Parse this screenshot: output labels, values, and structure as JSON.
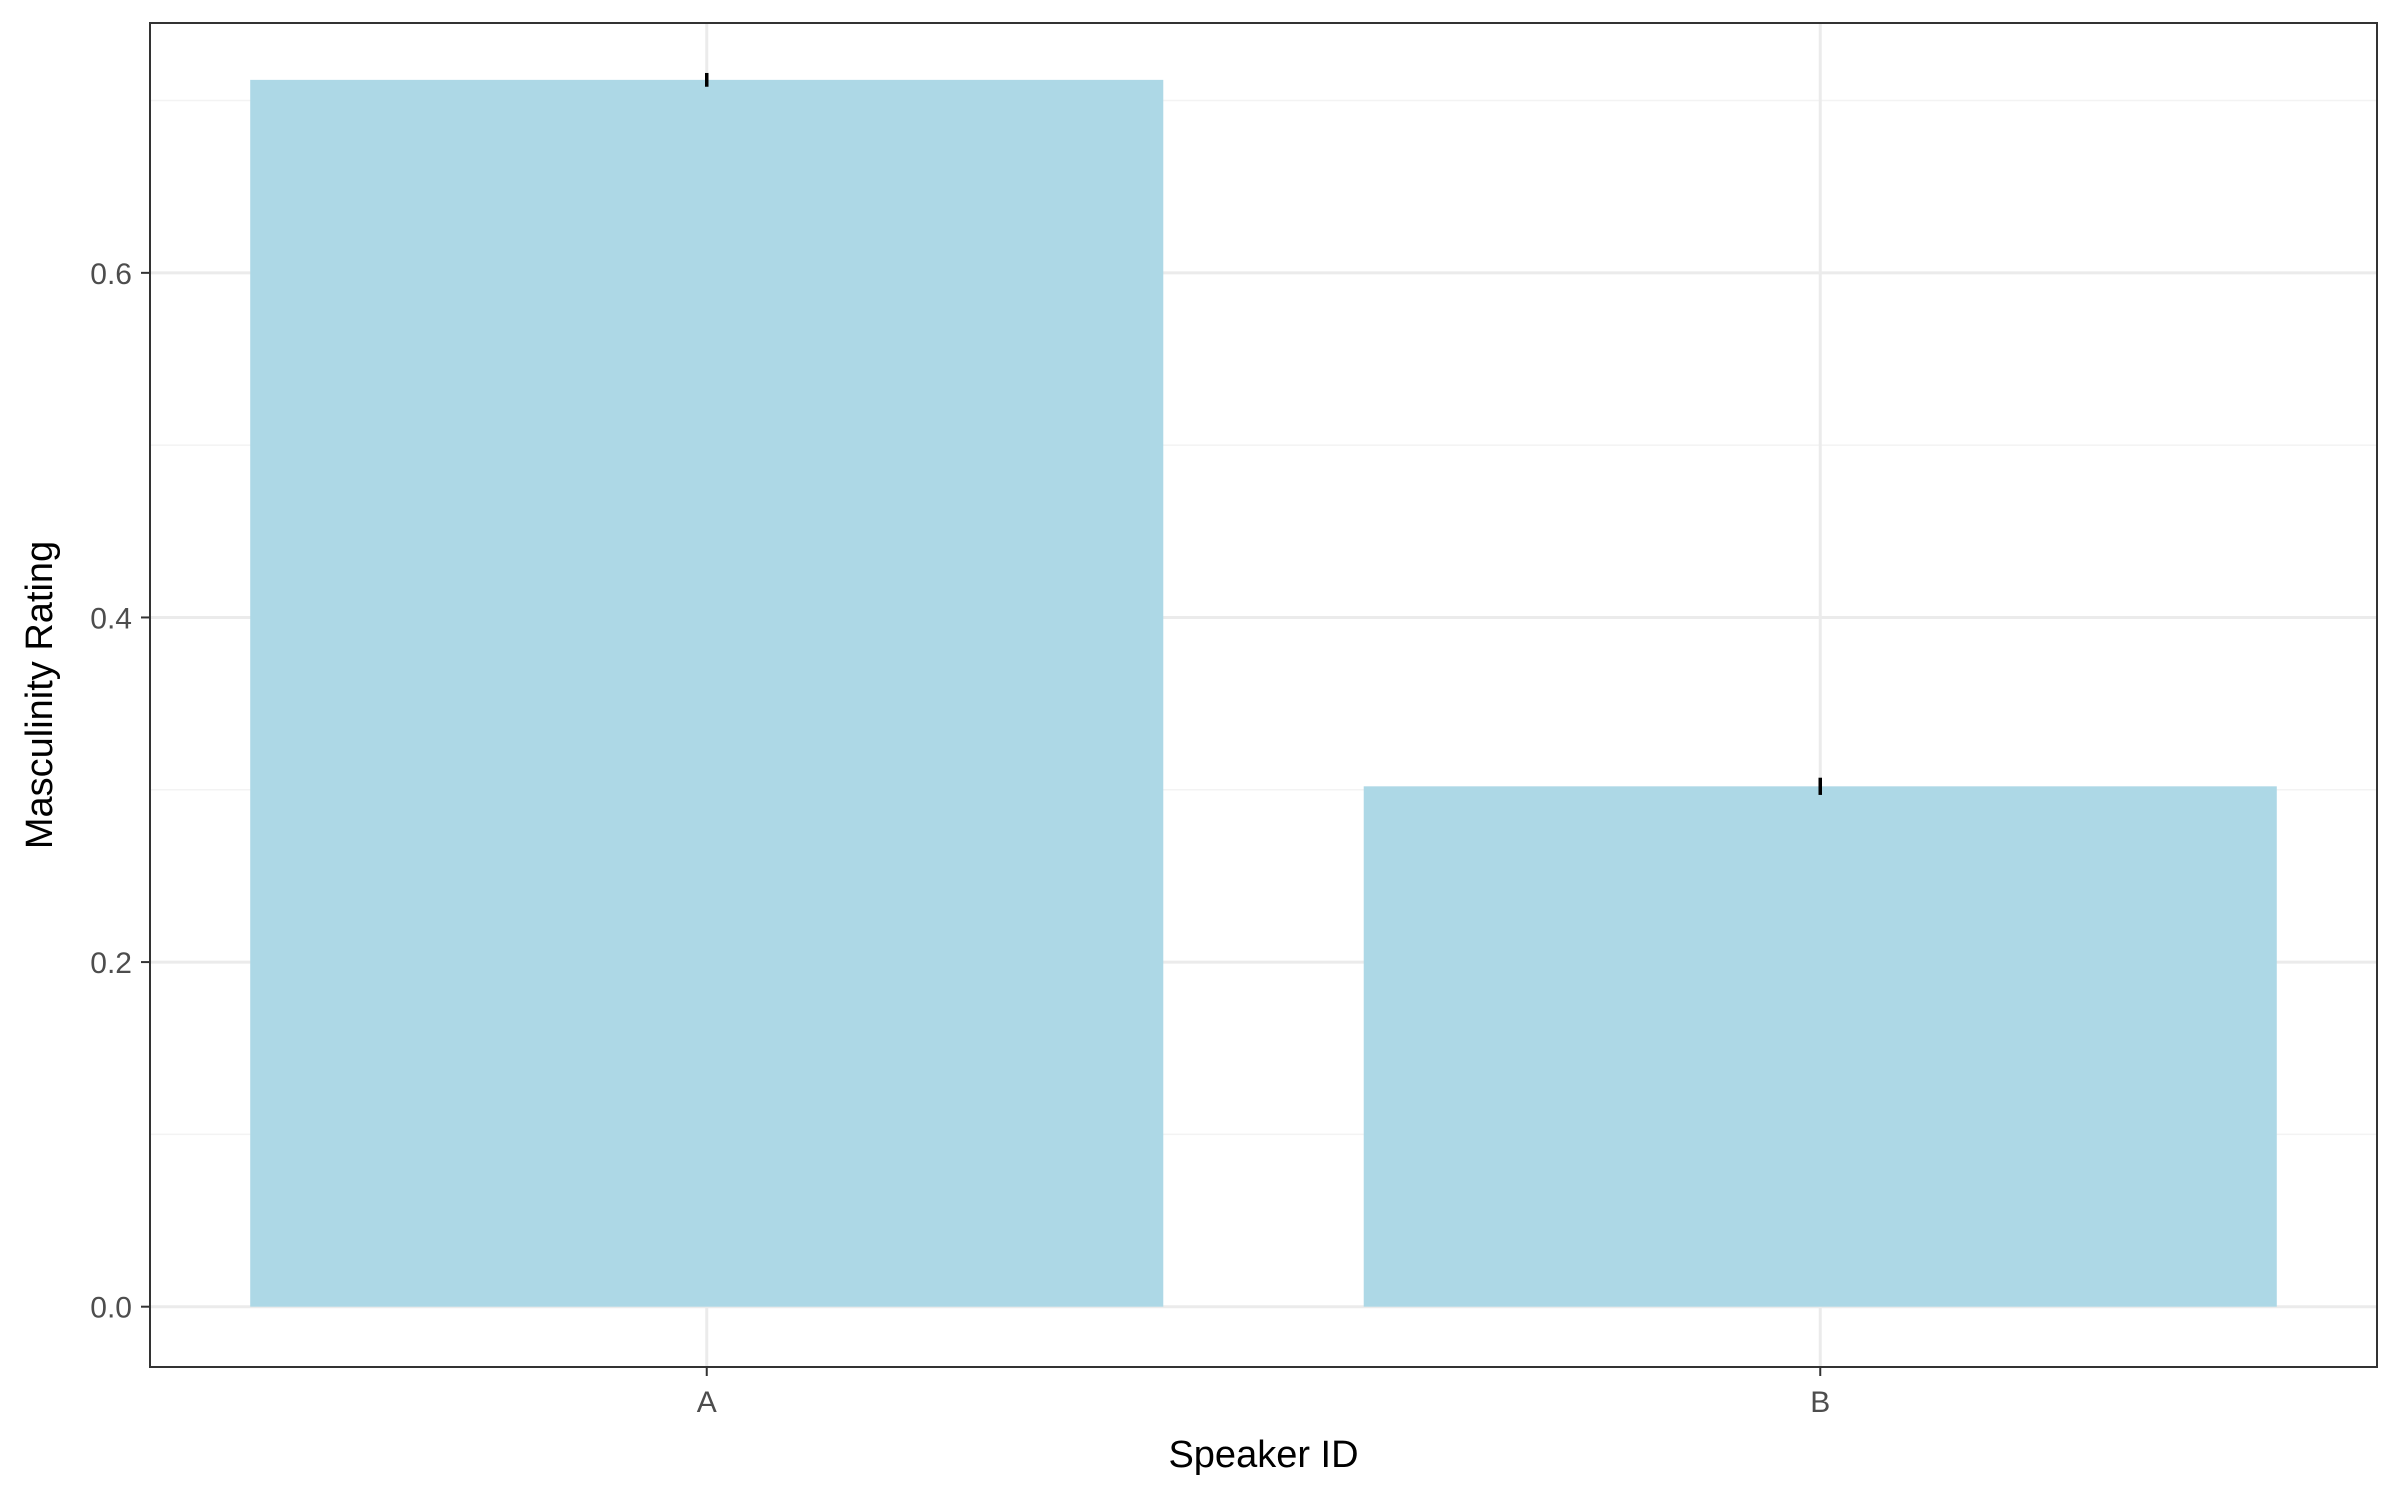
{
  "chart_data": {
    "type": "bar",
    "title": "",
    "xlabel": "Speaker ID",
    "ylabel": "Masculinity Rating",
    "categories": [
      "A",
      "B"
    ],
    "values": [
      0.712,
      0.302
    ],
    "error_bars": [
      {
        "low": 0.708,
        "high": 0.716
      },
      {
        "low": 0.297,
        "high": 0.307
      }
    ],
    "ylim": [
      -0.035,
      0.745
    ],
    "y_ticks": [
      0.0,
      0.2,
      0.4,
      0.6
    ],
    "y_tick_labels": [
      "0.0",
      "0.2",
      "0.4",
      "0.6"
    ],
    "y_minor_ticks": [
      0.1,
      0.3,
      0.5,
      0.7
    ],
    "grid": true,
    "legend": "none",
    "colors": {
      "bar_fill": "#add8e6",
      "error_bar": "#000000",
      "grid_major": "#ebebeb",
      "grid_minor": "#f3f3f3",
      "panel_border": "#333333",
      "tick_text": "#4d4d4d"
    }
  }
}
